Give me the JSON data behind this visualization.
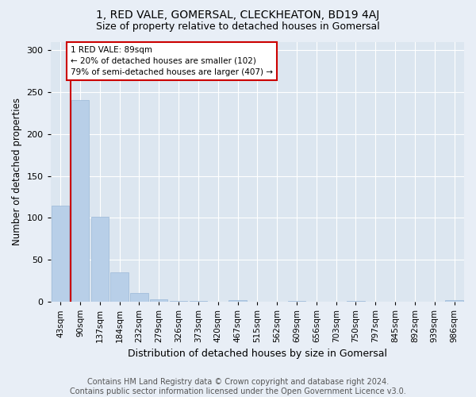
{
  "title": "1, RED VALE, GOMERSAL, CLECKHEATON, BD19 4AJ",
  "subtitle": "Size of property relative to detached houses in Gomersal",
  "xlabel": "Distribution of detached houses by size in Gomersal",
  "ylabel": "Number of detached properties",
  "bar_labels": [
    "43sqm",
    "90sqm",
    "137sqm",
    "184sqm",
    "232sqm",
    "279sqm",
    "326sqm",
    "373sqm",
    "420sqm",
    "467sqm",
    "515sqm",
    "562sqm",
    "609sqm",
    "656sqm",
    "703sqm",
    "750sqm",
    "797sqm",
    "845sqm",
    "892sqm",
    "939sqm",
    "986sqm"
  ],
  "bar_values": [
    115,
    240,
    101,
    35,
    10,
    3,
    1,
    1,
    0,
    2,
    0,
    0,
    1,
    0,
    0,
    1,
    0,
    0,
    0,
    0,
    2
  ],
  "bar_color": "#b8cfe8",
  "bar_edge_color": "#9ab8d8",
  "vline_x": 0.5,
  "vline_color": "#cc0000",
  "annotation_text": "1 RED VALE: 89sqm\n← 20% of detached houses are smaller (102)\n79% of semi-detached houses are larger (407) →",
  "annotation_box_color": "#ffffff",
  "annotation_box_edge_color": "#cc0000",
  "ylim": [
    0,
    310
  ],
  "yticks": [
    0,
    50,
    100,
    150,
    200,
    250,
    300
  ],
  "bg_color": "#e8eef6",
  "plot_bg_color": "#dce6f0",
  "grid_color": "#ffffff",
  "footer": "Contains HM Land Registry data © Crown copyright and database right 2024.\nContains public sector information licensed under the Open Government Licence v3.0.",
  "title_fontsize": 10,
  "subtitle_fontsize": 9,
  "xlabel_fontsize": 9,
  "ylabel_fontsize": 8.5,
  "footer_fontsize": 7,
  "tick_fontsize": 7.5,
  "ytick_fontsize": 8
}
